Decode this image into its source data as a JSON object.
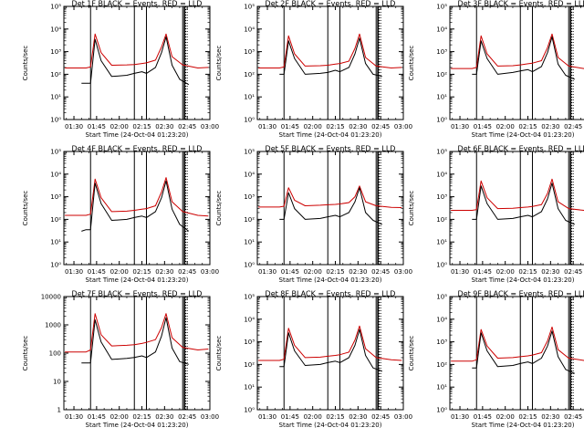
{
  "chart_data": [
    {
      "type": "line",
      "title": "Det 1F BLACK = Events, RED = LLD",
      "xlabel": "Start Time (24-Oct-04 01:23:20)",
      "ylabel": "Counts/sec",
      "y_scale": "log",
      "ylim": [
        1,
        100000
      ],
      "ytick_labels": [
        "10⁰",
        "10¹",
        "10²",
        "10³",
        "10⁴",
        "10⁵"
      ],
      "xlim": [
        "01:23:20",
        "03:00:00"
      ],
      "xtick_labels": [
        "01:30",
        "01:45",
        "02:00",
        "02:15",
        "02:30",
        "02:45",
        "03:00"
      ],
      "series": [
        {
          "color": "#cc0000",
          "x": [
            "01:24",
            "01:38",
            "01:41",
            "01:44",
            "01:48",
            "01:55",
            "02:05",
            "02:10",
            "02:15",
            "02:18",
            "02:24",
            "02:28",
            "02:31",
            "02:35",
            "02:42",
            "02:52",
            "02:59"
          ],
          "values": [
            190,
            190,
            210,
            6000,
            900,
            250,
            260,
            270,
            300,
            320,
            420,
            1600,
            6000,
            600,
            260,
            190,
            200
          ]
        },
        {
          "color": "#000000",
          "x": [
            "01:35",
            "01:38",
            "01:41",
            "01:44",
            "01:48",
            "01:55",
            "02:05",
            "02:10",
            "02:15",
            "02:18",
            "02:24",
            "02:28",
            "02:31",
            "02:35",
            "02:40",
            "02:46"
          ],
          "values": [
            40,
            40,
            40,
            3500,
            400,
            80,
            90,
            110,
            130,
            110,
            200,
            900,
            4500,
            250,
            60,
            35
          ]
        }
      ]
    },
    {
      "type": "line",
      "title": "Det 2F BLACK = Events, RED = LLD",
      "xlabel": "Start Time (24-Oct-04 01:23:20)",
      "ylabel": "Counts/sec",
      "y_scale": "log",
      "ylim": [
        1,
        100000
      ],
      "ytick_labels": [
        "10⁰",
        "10¹",
        "10²",
        "10³",
        "10⁴",
        "10⁵"
      ],
      "xlim": [
        "01:23:20",
        "03:00:00"
      ],
      "xtick_labels": [
        "01:30",
        "01:45",
        "02:00",
        "02:15",
        "02:30",
        "02:45",
        "03:00"
      ],
      "series": [
        {
          "color": "#cc0000",
          "x": [
            "01:24",
            "01:38",
            "01:41",
            "01:44",
            "01:48",
            "01:55",
            "02:05",
            "02:10",
            "02:15",
            "02:18",
            "02:24",
            "02:28",
            "02:31",
            "02:35",
            "02:42",
            "02:52",
            "02:59"
          ],
          "values": [
            190,
            190,
            210,
            5000,
            800,
            230,
            240,
            250,
            280,
            300,
            380,
            1400,
            6000,
            550,
            230,
            190,
            200
          ]
        },
        {
          "color": "#000000",
          "x": [
            "01:38",
            "01:41",
            "01:44",
            "01:48",
            "01:55",
            "02:05",
            "02:10",
            "02:15",
            "02:18",
            "02:24",
            "02:28",
            "02:31",
            "02:35",
            "02:40",
            "02:46"
          ],
          "values": [
            100,
            100,
            3000,
            500,
            100,
            110,
            120,
            150,
            130,
            200,
            800,
            4000,
            300,
            100,
            80
          ]
        }
      ]
    },
    {
      "type": "line",
      "title": "Det 3F BLACK = Events, RED = LLD",
      "xlabel": "Start Time (24-Oct-04 01:23:20)",
      "ylabel": "Counts/sec",
      "y_scale": "log",
      "ylim": [
        1,
        100000
      ],
      "ytick_labels": [
        "10⁰",
        "10¹",
        "10²",
        "10³",
        "10⁴",
        "10⁵"
      ],
      "xlim": [
        "01:23:20",
        "03:00:00"
      ],
      "xtick_labels": [
        "01:30",
        "01:45",
        "02:00",
        "02:15",
        "02:30",
        "02:45",
        "03:00"
      ],
      "series": [
        {
          "color": "#cc0000",
          "x": [
            "01:24",
            "01:38",
            "01:41",
            "01:44",
            "01:48",
            "01:55",
            "02:05",
            "02:10",
            "02:15",
            "02:18",
            "02:24",
            "02:28",
            "02:31",
            "02:35",
            "02:42",
            "02:52",
            "02:59"
          ],
          "values": [
            180,
            180,
            200,
            5000,
            800,
            230,
            240,
            260,
            290,
            310,
            400,
            1500,
            6000,
            550,
            230,
            180,
            190
          ]
        },
        {
          "color": "#000000",
          "x": [
            "01:38",
            "01:41",
            "01:44",
            "01:48",
            "01:55",
            "02:05",
            "02:10",
            "02:15",
            "02:18",
            "02:24",
            "02:28",
            "02:31",
            "02:35",
            "02:40",
            "02:46"
          ],
          "values": [
            100,
            100,
            3000,
            500,
            100,
            120,
            140,
            160,
            130,
            220,
            900,
            4500,
            280,
            90,
            60
          ]
        }
      ]
    },
    {
      "type": "line",
      "title": "Det 4F BLACK = Events, RED = LLD",
      "xlabel": "Start Time (24-Oct-04 01:23:20)",
      "ylabel": "Counts/sec",
      "y_scale": "log",
      "ylim": [
        1,
        100000
      ],
      "ytick_labels": [
        "10⁰",
        "10¹",
        "10²",
        "10³",
        "10⁴",
        "10⁵"
      ],
      "xlim": [
        "01:23:20",
        "03:00:00"
      ],
      "xtick_labels": [
        "01:30",
        "01:45",
        "02:00",
        "02:15",
        "02:30",
        "02:45",
        "03:00"
      ],
      "series": [
        {
          "color": "#cc0000",
          "x": [
            "01:24",
            "01:38",
            "01:41",
            "01:44",
            "01:48",
            "01:55",
            "02:05",
            "02:10",
            "02:15",
            "02:18",
            "02:24",
            "02:28",
            "02:31",
            "02:35",
            "02:42",
            "02:52",
            "02:59"
          ],
          "values": [
            150,
            150,
            170,
            6000,
            900,
            220,
            230,
            250,
            280,
            300,
            400,
            1600,
            7000,
            600,
            220,
            150,
            140
          ]
        },
        {
          "color": "#000000",
          "x": [
            "01:35",
            "01:38",
            "01:41",
            "01:44",
            "01:48",
            "01:55",
            "02:05",
            "02:10",
            "02:15",
            "02:18",
            "02:24",
            "02:28",
            "02:31",
            "02:35",
            "02:40",
            "02:46"
          ],
          "values": [
            30,
            35,
            35,
            4000,
            500,
            90,
            100,
            120,
            140,
            120,
            220,
            900,
            5000,
            280,
            60,
            30
          ]
        }
      ]
    },
    {
      "type": "line",
      "title": "Det 5F BLACK = Events, RED = LLD",
      "xlabel": "Start Time (24-Oct-04 01:23:20)",
      "ylabel": "Counts/sec",
      "y_scale": "log",
      "ylim": [
        1,
        100000
      ],
      "ytick_labels": [
        "10⁰",
        "10¹",
        "10²",
        "10³",
        "10⁴",
        "10⁵"
      ],
      "xlim": [
        "01:23:20",
        "03:00:00"
      ],
      "xtick_labels": [
        "01:30",
        "01:45",
        "02:00",
        "02:15",
        "02:30",
        "02:45",
        "03:00"
      ],
      "series": [
        {
          "color": "#cc0000",
          "x": [
            "01:24",
            "01:38",
            "01:41",
            "01:44",
            "01:48",
            "01:55",
            "02:05",
            "02:10",
            "02:15",
            "02:18",
            "02:24",
            "02:28",
            "02:31",
            "02:35",
            "02:42",
            "02:52",
            "02:59"
          ],
          "values": [
            350,
            350,
            380,
            2500,
            700,
            400,
            420,
            440,
            460,
            480,
            550,
            1000,
            3000,
            600,
            400,
            340,
            330
          ]
        },
        {
          "color": "#000000",
          "x": [
            "01:38",
            "01:41",
            "01:44",
            "01:48",
            "01:55",
            "02:05",
            "02:10",
            "02:15",
            "02:18",
            "02:24",
            "02:28",
            "02:31",
            "02:35",
            "02:40",
            "02:46"
          ],
          "values": [
            100,
            100,
            1500,
            300,
            100,
            110,
            130,
            150,
            130,
            200,
            600,
            2500,
            200,
            90,
            60
          ]
        }
      ]
    },
    {
      "type": "line",
      "title": "Det 6F BLACK = Events, RED = LLD",
      "xlabel": "Start Time (24-Oct-04 01:23:20)",
      "ylabel": "Counts/sec",
      "y_scale": "log",
      "ylim": [
        1,
        100000
      ],
      "ytick_labels": [
        "10⁰",
        "10¹",
        "10²",
        "10³",
        "10⁴",
        "10⁵"
      ],
      "xlim": [
        "01:23:20",
        "03:00:00"
      ],
      "xtick_labels": [
        "01:30",
        "01:45",
        "02:00",
        "02:15",
        "02:30",
        "02:45",
        "03:00"
      ],
      "series": [
        {
          "color": "#cc0000",
          "x": [
            "01:24",
            "01:38",
            "01:41",
            "01:44",
            "01:48",
            "01:55",
            "02:05",
            "02:10",
            "02:15",
            "02:18",
            "02:24",
            "02:28",
            "02:31",
            "02:35",
            "02:42",
            "02:52",
            "02:59"
          ],
          "values": [
            250,
            250,
            270,
            5000,
            900,
            300,
            310,
            330,
            350,
            370,
            450,
            1400,
            6000,
            600,
            300,
            250,
            250
          ]
        },
        {
          "color": "#000000",
          "x": [
            "01:38",
            "01:41",
            "01:44",
            "01:48",
            "01:55",
            "02:05",
            "02:10",
            "02:15",
            "02:18",
            "02:24",
            "02:28",
            "02:31",
            "02:35",
            "02:40",
            "02:46"
          ],
          "values": [
            100,
            100,
            3000,
            500,
            100,
            110,
            130,
            150,
            130,
            220,
            800,
            4000,
            300,
            90,
            60
          ]
        }
      ]
    },
    {
      "type": "line",
      "title": "Det 7F BLACK = Events, RED = LLD",
      "xlabel": "Start Time (24-Oct-04 01:23:20)",
      "ylabel": "Counts/sec",
      "y_scale": "log",
      "ylim": [
        1,
        10000
      ],
      "ytick_labels": [
        "1",
        "10",
        "100",
        "1000",
        "10000"
      ],
      "xlim": [
        "01:23:20",
        "03:00:00"
      ],
      "xtick_labels": [
        "01:30",
        "01:45",
        "02:00",
        "02:15",
        "02:30",
        "02:45",
        "03:00"
      ],
      "series": [
        {
          "color": "#cc0000",
          "x": [
            "01:24",
            "01:38",
            "01:41",
            "01:44",
            "01:48",
            "01:55",
            "02:05",
            "02:10",
            "02:15",
            "02:18",
            "02:24",
            "02:28",
            "02:31",
            "02:35",
            "02:42",
            "02:52",
            "02:59"
          ],
          "values": [
            110,
            110,
            130,
            2500,
            450,
            180,
            190,
            200,
            220,
            240,
            300,
            800,
            2500,
            350,
            160,
            130,
            140
          ]
        },
        {
          "color": "#000000",
          "x": [
            "01:35",
            "01:38",
            "01:41",
            "01:44",
            "01:48",
            "01:55",
            "02:05",
            "02:10",
            "02:15",
            "02:18",
            "02:24",
            "02:28",
            "02:31",
            "02:35",
            "02:40",
            "02:46"
          ],
          "values": [
            45,
            45,
            45,
            1500,
            250,
            60,
            65,
            70,
            80,
            70,
            110,
            400,
            1800,
            150,
            50,
            40
          ]
        }
      ]
    },
    {
      "type": "line",
      "title": "Det 8F BLACK = Events, RED = LLD",
      "xlabel": "Start Time (24-Oct-04 01:23:20)",
      "ylabel": "Counts/sec",
      "y_scale": "log",
      "ylim": [
        1,
        100000
      ],
      "ytick_labels": [
        "10⁰",
        "10¹",
        "10²",
        "10³",
        "10⁴",
        "10⁵"
      ],
      "xlim": [
        "01:23:20",
        "03:00:00"
      ],
      "xtick_labels": [
        "01:30",
        "01:45",
        "02:00",
        "02:15",
        "02:30",
        "02:45",
        "03:00"
      ],
      "series": [
        {
          "color": "#cc0000",
          "x": [
            "01:24",
            "01:38",
            "01:41",
            "01:44",
            "01:48",
            "01:55",
            "02:05",
            "02:10",
            "02:15",
            "02:18",
            "02:24",
            "02:28",
            "02:31",
            "02:35",
            "02:42",
            "02:52",
            "02:59"
          ],
          "values": [
            150,
            150,
            170,
            4000,
            700,
            200,
            210,
            230,
            250,
            270,
            350,
            1200,
            5000,
            500,
            200,
            160,
            150
          ]
        },
        {
          "color": "#000000",
          "x": [
            "01:38",
            "01:41",
            "01:44",
            "01:48",
            "01:55",
            "02:05",
            "02:10",
            "02:15",
            "02:18",
            "02:24",
            "02:28",
            "02:31",
            "02:35",
            "02:40",
            "02:46"
          ],
          "values": [
            80,
            80,
            2500,
            400,
            90,
            100,
            120,
            140,
            120,
            200,
            700,
            3500,
            250,
            70,
            50
          ]
        }
      ]
    },
    {
      "type": "line",
      "title": "Det 9F BLACK = Events, RED = LLD",
      "xlabel": "Start Time (24-Oct-04 01:23:20)",
      "ylabel": "Counts/sec",
      "y_scale": "log",
      "ylim": [
        1,
        100000
      ],
      "ytick_labels": [
        "10⁰",
        "10¹",
        "10²",
        "10³",
        "10⁴",
        "10⁵"
      ],
      "xlim": [
        "01:23:20",
        "03:00:00"
      ],
      "xtick_labels": [
        "01:30",
        "01:45",
        "02:00",
        "02:15",
        "02:30",
        "02:45",
        "03:00"
      ],
      "series": [
        {
          "color": "#cc0000",
          "x": [
            "01:24",
            "01:38",
            "01:41",
            "01:44",
            "01:48",
            "01:55",
            "02:05",
            "02:10",
            "02:15",
            "02:18",
            "02:24",
            "02:28",
            "02:31",
            "02:35",
            "02:42",
            "02:52",
            "02:59"
          ],
          "values": [
            140,
            140,
            160,
            3500,
            650,
            190,
            200,
            220,
            240,
            260,
            330,
            1100,
            4500,
            450,
            190,
            150,
            140
          ]
        },
        {
          "color": "#000000",
          "x": [
            "01:38",
            "01:41",
            "01:44",
            "01:48",
            "01:55",
            "02:05",
            "02:10",
            "02:15",
            "02:18",
            "02:24",
            "02:28",
            "02:31",
            "02:35",
            "02:40",
            "02:46"
          ],
          "values": [
            70,
            70,
            2500,
            400,
            80,
            90,
            110,
            130,
            110,
            190,
            650,
            3000,
            220,
            60,
            40
          ]
        }
      ]
    }
  ],
  "markers": {
    "vertical_lines": [
      "01:41",
      "02:10",
      "02:18",
      "02:42",
      "02:43",
      "02:43:30"
    ],
    "dotted_lines": [
      "02:44",
      "02:45"
    ]
  }
}
